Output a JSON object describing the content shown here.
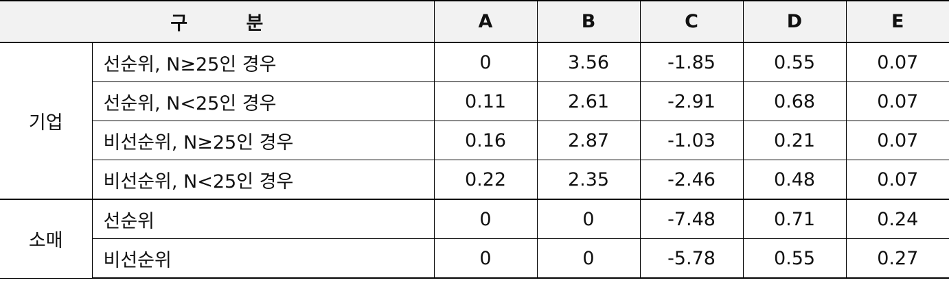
{
  "header": {
    "category": "구 분",
    "columns": [
      "A",
      "B",
      "C",
      "D",
      "E"
    ]
  },
  "groups": [
    {
      "name": "기업",
      "rows": [
        {
          "label": "선순위, N≥25인 경우",
          "values": [
            "0",
            "3.56",
            "-1.85",
            "0.55",
            "0.07"
          ]
        },
        {
          "label": "선순위, N<25인 경우",
          "values": [
            "0.11",
            "2.61",
            "-2.91",
            "0.68",
            "0.07"
          ]
        },
        {
          "label": "비선순위, N≥25인 경우",
          "values": [
            "0.16",
            "2.87",
            "-1.03",
            "0.21",
            "0.07"
          ]
        },
        {
          "label": "비선순위, N<25인 경우",
          "values": [
            "0.22",
            "2.35",
            "-2.46",
            "0.48",
            "0.07"
          ]
        }
      ]
    },
    {
      "name": "소매",
      "rows": [
        {
          "label": "선순위",
          "values": [
            "0",
            "0",
            "-7.48",
            "0.71",
            "0.24"
          ]
        },
        {
          "label": "비선순위",
          "values": [
            "0",
            "0",
            "-5.78",
            "0.55",
            "0.27"
          ]
        }
      ]
    }
  ]
}
